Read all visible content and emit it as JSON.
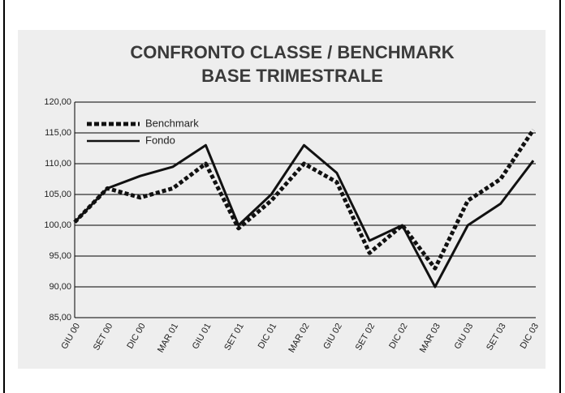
{
  "chart_data": {
    "type": "line",
    "title": "CONFRONTO CLASSE / BENCHMARK",
    "subtitle": "BASE TRIMESTRALE",
    "categories": [
      "GIU 00",
      "SET 00",
      "DIC 00",
      "MAR 01",
      "GIU 01",
      "SET 01",
      "DIC 01",
      "MAR 02",
      "GIU 02",
      "SET 02",
      "DIC 02",
      "MAR 03",
      "GIU 03",
      "SET 03",
      "DIC 03"
    ],
    "series": [
      {
        "name": "Benchmark",
        "color": "#111111",
        "dash": true,
        "values": [
          100.5,
          106,
          104.5,
          106,
          110,
          99.5,
          104,
          110,
          107,
          95.5,
          100,
          93,
          104,
          107.5,
          115.5
        ]
      },
      {
        "name": "Fondo",
        "color": "#111111",
        "dash": false,
        "values": [
          100.5,
          106,
          108,
          109.5,
          113,
          100,
          105,
          113,
          108.5,
          97.5,
          100,
          90,
          100,
          103.5,
          110.5
        ]
      }
    ],
    "ylim": [
      85,
      120
    ],
    "yticks": [
      {
        "value": 85,
        "label": "85,00"
      },
      {
        "value": 90,
        "label": "90,00"
      },
      {
        "value": 95,
        "label": "95,00"
      },
      {
        "value": 100,
        "label": "100,00"
      },
      {
        "value": 105,
        "label": "105,00"
      },
      {
        "value": 110,
        "label": "110,00"
      },
      {
        "value": 115,
        "label": "115,00"
      },
      {
        "value": 120,
        "label": "120,00"
      }
    ],
    "grid": true,
    "legend": "upper-left"
  }
}
